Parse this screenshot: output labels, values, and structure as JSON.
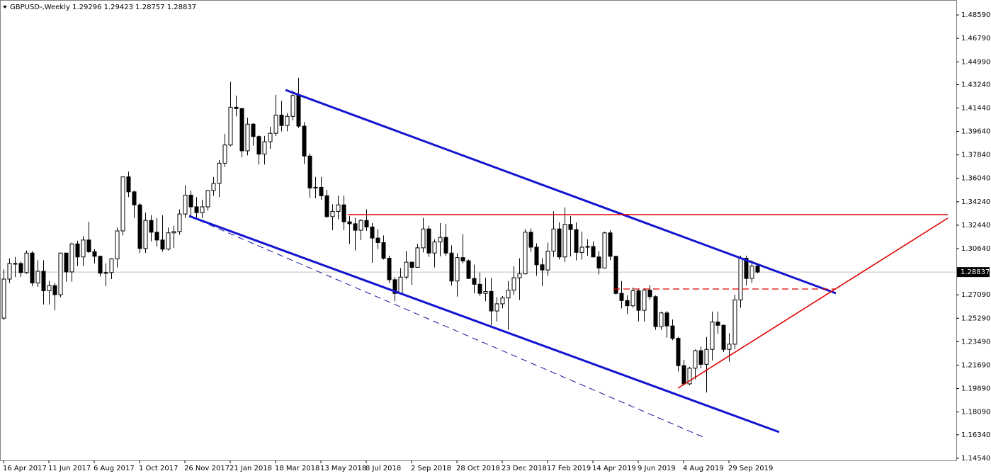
{
  "chart_data": {
    "type": "candlestick",
    "title": "GBPUSD-,Weekly",
    "categories": [
      "16 Apr 2017",
      null,
      null,
      null,
      null,
      null,
      null,
      null,
      "11 Jun 2017",
      null,
      null,
      null,
      null,
      null,
      null,
      null,
      "6 Aug 2017",
      null,
      null,
      null,
      null,
      null,
      null,
      null,
      "1 Oct 2017",
      null,
      null,
      null,
      null,
      null,
      null,
      null,
      "26 Nov 2017",
      null,
      null,
      null,
      null,
      null,
      null,
      null,
      "21 Jan 2018",
      null,
      null,
      null,
      null,
      null,
      null,
      null,
      "18 Mar 2018",
      null,
      null,
      null,
      null,
      null,
      null,
      null,
      "13 May 2018",
      null,
      null,
      null,
      null,
      null,
      null,
      null,
      "8 Jul 2018",
      null,
      null,
      null,
      null,
      null,
      null,
      null,
      "2 Sep 2018",
      null,
      null,
      null,
      null,
      null,
      null,
      null,
      "28 Oct 2018",
      null,
      null,
      null,
      null,
      null,
      null,
      null,
      "23 Dec 2018",
      null,
      null,
      null,
      null,
      null,
      null,
      null,
      "17 Feb 2019",
      null,
      null,
      null,
      null,
      null,
      null,
      null,
      "14 Apr 2019",
      null,
      null,
      null,
      null,
      null,
      null,
      null,
      "9 Jun 2019",
      null,
      null,
      null,
      null,
      null,
      null,
      null,
      "4 Aug 2019",
      null,
      null,
      null,
      null,
      null,
      null,
      null,
      "29 Sep 2019",
      null,
      null,
      null,
      null,
      null
    ],
    "open": [
      1.253,
      1.283,
      1.295,
      1.295,
      1.288,
      1.303,
      1.28,
      1.289,
      1.274,
      1.278,
      1.271,
      1.303,
      1.2885,
      1.31,
      1.3,
      1.313,
      1.304,
      1.3005,
      1.2875,
      1.288,
      1.2985,
      1.32,
      1.3615,
      1.35,
      1.34,
      1.3065,
      1.328,
      1.319,
      1.313,
      1.306,
      1.3185,
      1.3195,
      1.333,
      1.3475,
      1.3385,
      1.334,
      1.3385,
      1.351,
      1.3565,
      1.372,
      1.386,
      1.415,
      1.414,
      1.3815,
      1.402,
      1.3925,
      1.379,
      1.3885,
      1.395,
      1.409,
      1.401,
      1.408,
      1.424,
      1.4005,
      1.3775,
      1.353,
      1.3535,
      1.347,
      1.331,
      1.335,
      1.34,
      1.327,
      1.3255,
      1.3205,
      1.328,
      1.323,
      1.3145,
      1.311,
      1.299,
      1.2825,
      1.272,
      1.2845,
      1.296,
      1.292,
      1.307,
      1.3215,
      1.303,
      1.3115,
      1.315,
      1.303,
      1.2815,
      1.2995,
      1.297,
      1.2835,
      1.279,
      1.272,
      1.2735,
      1.2585,
      1.264,
      1.2685,
      1.2745,
      1.284,
      1.287,
      1.319,
      1.3075,
      1.294,
      1.29,
      1.3045,
      1.3215,
      1.3,
      1.325,
      1.321,
      1.3035,
      1.3075,
      1.308,
      1.3,
      1.2915,
      1.3185,
      1.3005,
      1.272,
      1.2665,
      1.2625,
      1.274,
      1.259,
      1.2745,
      1.2695,
      1.2465,
      1.257,
      1.247,
      1.2375,
      1.2165,
      1.2025,
      1.2145,
      1.228,
      1.2175,
      1.229,
      1.25,
      1.2475,
      1.229,
      1.233,
      1.267,
      1.299,
      1.2835,
      1.29296
    ],
    "high": [
      1.2905,
      1.299,
      1.3,
      1.2965,
      1.305,
      1.3045,
      1.2975,
      1.2975,
      1.2815,
      1.28,
      1.303,
      1.303,
      1.311,
      1.3125,
      1.316,
      1.327,
      1.306,
      1.301,
      1.295,
      1.299,
      1.3225,
      1.3615,
      1.3655,
      1.351,
      1.3415,
      1.334,
      1.332,
      1.33,
      1.332,
      1.3225,
      1.324,
      1.3365,
      1.355,
      1.351,
      1.346,
      1.344,
      1.3515,
      1.3615,
      1.3745,
      1.3945,
      1.4345,
      1.424,
      1.4145,
      1.407,
      1.403,
      1.3935,
      1.393,
      1.4,
      1.4245,
      1.42,
      1.4105,
      1.4275,
      1.4376,
      1.4035,
      1.3795,
      1.3615,
      1.3615,
      1.3515,
      1.3405,
      1.347,
      1.347,
      1.3315,
      1.33,
      1.329,
      1.3365,
      1.326,
      1.3215,
      1.3165,
      1.301,
      1.2845,
      1.2915,
      1.3045,
      1.296,
      1.31,
      1.33,
      1.324,
      1.3135,
      1.326,
      1.3255,
      1.309,
      1.303,
      1.3175,
      1.298,
      1.294,
      1.288,
      1.284,
      1.284,
      1.269,
      1.27,
      1.2815,
      1.293,
      1.299,
      1.3215,
      1.322,
      1.3105,
      1.299,
      1.311,
      1.335,
      1.3265,
      1.338,
      1.3315,
      1.3265,
      1.3195,
      1.3135,
      1.312,
      1.3045,
      1.3195,
      1.3205,
      1.3005,
      1.2815,
      1.2705,
      1.2765,
      1.275,
      1.276,
      1.2785,
      1.2705,
      1.258,
      1.2585,
      1.252,
      1.2385,
      1.221,
      1.2155,
      1.229,
      1.231,
      1.2385,
      1.258,
      1.258,
      1.248,
      1.2415,
      1.271,
      1.301,
      1.301,
      1.2975,
      1.29423
    ],
    "low": [
      1.2515,
      1.28,
      1.2845,
      1.2845,
      1.287,
      1.2775,
      1.277,
      1.2635,
      1.2635,
      1.259,
      1.269,
      1.281,
      1.281,
      1.293,
      1.293,
      1.303,
      1.295,
      1.285,
      1.2775,
      1.283,
      1.292,
      1.3165,
      1.346,
      1.33,
      1.303,
      1.303,
      1.312,
      1.308,
      1.304,
      1.305,
      1.307,
      1.317,
      1.33,
      1.33,
      1.33,
      1.33,
      1.3355,
      1.347,
      1.346,
      1.369,
      1.385,
      1.408,
      1.3765,
      1.378,
      1.3855,
      1.371,
      1.371,
      1.383,
      1.393,
      1.3965,
      1.3965,
      1.405,
      1.399,
      1.3715,
      1.3455,
      1.345,
      1.344,
      1.33,
      1.3205,
      1.329,
      1.3205,
      1.31,
      1.305,
      1.313,
      1.32,
      1.2955,
      1.306,
      1.298,
      1.28,
      1.266,
      1.272,
      1.283,
      1.2785,
      1.292,
      1.3035,
      1.3,
      1.292,
      1.3005,
      1.301,
      1.278,
      1.2695,
      1.295,
      1.283,
      1.272,
      1.27,
      1.266,
      1.2475,
      1.2505,
      1.2605,
      1.244,
      1.271,
      1.267,
      1.2865,
      1.304,
      1.2855,
      1.2775,
      1.2855,
      1.3,
      1.298,
      1.296,
      1.3005,
      1.2975,
      1.298,
      1.301,
      1.2995,
      1.2865,
      1.2915,
      1.2975,
      1.271,
      1.2605,
      1.256,
      1.261,
      1.2505,
      1.2505,
      1.267,
      1.244,
      1.244,
      1.238,
      1.236,
      1.212,
      1.2015,
      1.2015,
      1.206,
      1.2145,
      1.1959,
      1.2205,
      1.241,
      1.227,
      1.2195,
      1.229,
      1.261,
      1.278,
      1.28,
      1.28757
    ],
    "close": [
      1.283,
      1.295,
      1.295,
      1.288,
      1.303,
      1.28,
      1.289,
      1.274,
      1.278,
      1.271,
      1.303,
      1.2885,
      1.31,
      1.3,
      1.313,
      1.304,
      1.3005,
      1.2875,
      1.288,
      1.2985,
      1.32,
      1.3615,
      1.35,
      1.34,
      1.3065,
      1.328,
      1.319,
      1.313,
      1.306,
      1.3185,
      1.3195,
      1.333,
      1.3475,
      1.3385,
      1.334,
      1.3385,
      1.351,
      1.3565,
      1.372,
      1.386,
      1.415,
      1.414,
      1.3815,
      1.402,
      1.3925,
      1.379,
      1.3885,
      1.395,
      1.409,
      1.401,
      1.408,
      1.424,
      1.4005,
      1.3775,
      1.353,
      1.3535,
      1.347,
      1.331,
      1.335,
      1.34,
      1.327,
      1.3255,
      1.3205,
      1.328,
      1.323,
      1.3145,
      1.311,
      1.299,
      1.2825,
      1.272,
      1.2845,
      1.296,
      1.292,
      1.307,
      1.3215,
      1.303,
      1.3115,
      1.315,
      1.303,
      1.2815,
      1.2995,
      1.297,
      1.2835,
      1.279,
      1.272,
      1.2735,
      1.2585,
      1.264,
      1.2685,
      1.2745,
      1.284,
      1.287,
      1.319,
      1.3075,
      1.294,
      1.29,
      1.3045,
      1.3215,
      1.3,
      1.325,
      1.321,
      1.3035,
      1.3075,
      1.308,
      1.3,
      1.2915,
      1.3185,
      1.3005,
      1.272,
      1.2665,
      1.2625,
      1.274,
      1.259,
      1.2745,
      1.2695,
      1.2465,
      1.257,
      1.247,
      1.2375,
      1.2165,
      1.2025,
      1.2145,
      1.228,
      1.2175,
      1.229,
      1.25,
      1.2475,
      1.229,
      1.233,
      1.267,
      1.299,
      1.2835,
      1.29296,
      1.28837
    ],
    "up_color": "#ffffff",
    "down_color": "#000000",
    "ylim": [
      1.1437,
      1.4952
    ],
    "yticks": [
      {
        "value": 1.4859,
        "label": "1.48590"
      },
      {
        "value": 1.4679,
        "label": "1.46790"
      },
      {
        "value": 1.4499,
        "label": "1.44990"
      },
      {
        "value": 1.4324,
        "label": "1.43240"
      },
      {
        "value": 1.4144,
        "label": "1.41440"
      },
      {
        "value": 1.3964,
        "label": "1.39640"
      },
      {
        "value": 1.3784,
        "label": "1.37840"
      },
      {
        "value": 1.3604,
        "label": "1.36040"
      },
      {
        "value": 1.3424,
        "label": "1.34240"
      },
      {
        "value": 1.3244,
        "label": "1.32440"
      },
      {
        "value": 1.3064,
        "label": "1.30640"
      },
      {
        "value": 1.2709,
        "label": "1.27090"
      },
      {
        "value": 1.2529,
        "label": "1.25290"
      },
      {
        "value": 1.2349,
        "label": "1.23490"
      },
      {
        "value": 1.2169,
        "label": "1.21690"
      },
      {
        "value": 1.1989,
        "label": "1.19890"
      },
      {
        "value": 1.1809,
        "label": "1.18090"
      },
      {
        "value": 1.1634,
        "label": "1.16340"
      },
      {
        "value": 1.1454,
        "label": "1.14540"
      }
    ],
    "grid": false
  }
}
